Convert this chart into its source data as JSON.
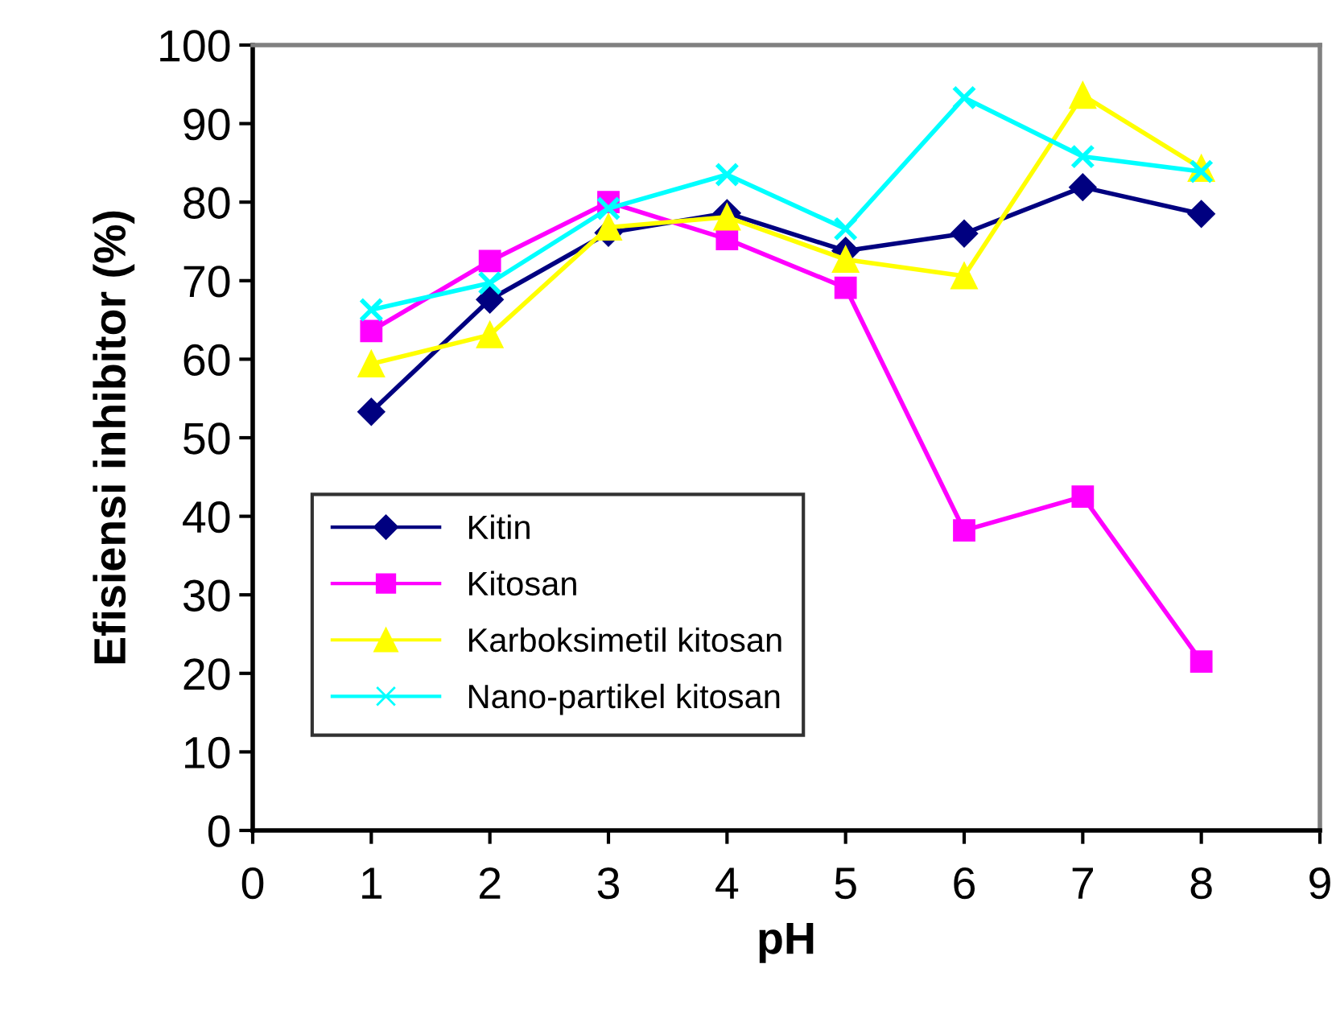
{
  "chart_data": {
    "type": "line",
    "xlabel": "pH",
    "ylabel": "Efisiensi inhibitor (%)",
    "x": [
      1,
      2,
      3,
      4,
      5,
      6,
      7,
      8
    ],
    "series": [
      {
        "name": "Kitin",
        "color": "#000080",
        "marker": "diamond",
        "values": [
          53.3,
          67.6,
          76.1,
          78.6,
          73.8,
          76.0,
          81.9,
          78.5
        ]
      },
      {
        "name": "Kitosan",
        "color": "#ff00ff",
        "marker": "square",
        "values": [
          63.6,
          72.5,
          80.0,
          75.3,
          69.1,
          38.2,
          42.5,
          21.5
        ]
      },
      {
        "name": "Karboksimetil kitosan",
        "color": "#ffff00",
        "marker": "triangle",
        "values": [
          59.4,
          63.1,
          76.8,
          78.1,
          72.7,
          70.6,
          93.6,
          84.3
        ]
      },
      {
        "name": "Nano-partikel kitosan",
        "color": "#00ffff",
        "marker": "cross",
        "values": [
          66.3,
          69.7,
          79.2,
          83.5,
          76.6,
          93.3,
          85.8,
          83.9
        ]
      }
    ],
    "xlim": [
      0,
      9
    ],
    "xticks": [
      0,
      1,
      2,
      3,
      4,
      5,
      6,
      7,
      8,
      9
    ],
    "ylim": [
      0,
      100
    ],
    "yticks": [
      0,
      10,
      20,
      30,
      40,
      50,
      60,
      70,
      80,
      90,
      100
    ],
    "grid": false,
    "legend": "bottom left",
    "line_style": "solid"
  }
}
